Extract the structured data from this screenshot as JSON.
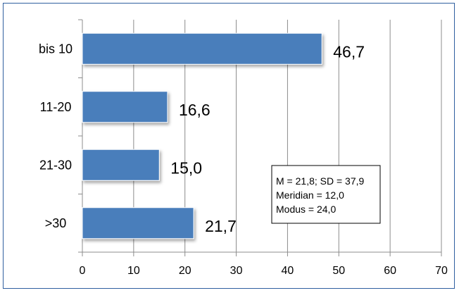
{
  "chart_data": {
    "type": "bar",
    "orientation": "horizontal",
    "categories": [
      "bis 10",
      "11-20",
      "21-30",
      ">30"
    ],
    "values": [
      46.7,
      16.6,
      15.0,
      21.7
    ],
    "value_labels": [
      "46,7",
      "16,6",
      "15,0",
      "21,7"
    ],
    "xlim": [
      0,
      70
    ],
    "x_ticks": [
      0,
      10,
      20,
      30,
      40,
      50,
      60,
      70
    ],
    "title": "",
    "xlabel": "",
    "ylabel": "",
    "grid": "vertical",
    "bar_color": "#4a7ebb",
    "annotation": [
      "M = 21,8; SD = 37,9",
      "Meridian = 12,0",
      "Modus = 24,0"
    ]
  }
}
